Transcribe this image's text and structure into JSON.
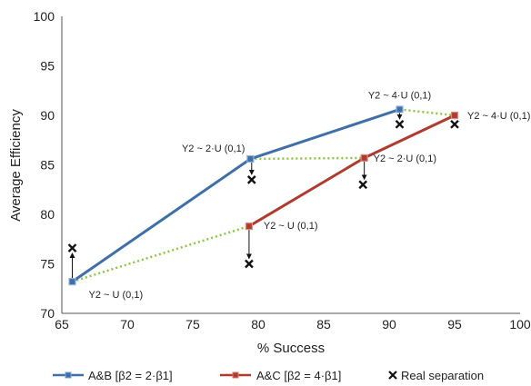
{
  "chart_data": {
    "type": "line",
    "xlabel": "% Success",
    "ylabel": "Average Efficiency",
    "xlim": [
      65,
      100
    ],
    "ylim": [
      70,
      100
    ],
    "xticks": [
      "65",
      "70",
      "75",
      "80",
      "85",
      "90",
      "95",
      "100"
    ],
    "yticks": [
      "70",
      "75",
      "80",
      "85",
      "90",
      "95",
      "100"
    ],
    "grid": false,
    "legend_position": "bottom",
    "series": [
      {
        "name": "A&B [β2 = 2·β1]",
        "color": "#3f6fa8",
        "points": [
          {
            "x": 65.8,
            "y": 73.2,
            "label": "Y2 ~ U (0,1)"
          },
          {
            "x": 79.4,
            "y": 85.6,
            "label": "Y2 ~ 2·U (0,1)"
          },
          {
            "x": 90.8,
            "y": 90.6,
            "label": "Y2 ~ 4·U (0,1)"
          }
        ]
      },
      {
        "name": "A&C [β2 = 4·β1]",
        "color": "#b03a2e",
        "points": [
          {
            "x": 79.3,
            "y": 78.8,
            "label": "Y2 ~ U (0,1)"
          },
          {
            "x": 88.1,
            "y": 85.7,
            "label": "Y2 ~ 2·U (0,1)"
          },
          {
            "x": 95.0,
            "y": 90.0,
            "label": "Y2 ~ 4·U (0,1)"
          }
        ]
      },
      {
        "name": "Real separation",
        "color": "#111111",
        "points": [
          {
            "x": 65.8,
            "y": 76.6
          },
          {
            "x": 79.5,
            "y": 83.5
          },
          {
            "x": 79.3,
            "y": 75.0
          },
          {
            "x": 88.0,
            "y": 83.0
          },
          {
            "x": 90.8,
            "y": 89.1
          },
          {
            "x": 95.0,
            "y": 89.1
          }
        ]
      }
    ],
    "connectors": [
      {
        "x1": 65.8,
        "y1": 73.2,
        "x2": 79.3,
        "y2": 78.8
      },
      {
        "x1": 79.4,
        "y1": 85.6,
        "x2": 88.1,
        "y2": 85.7
      },
      {
        "x1": 90.8,
        "y1": 90.6,
        "x2": 95.0,
        "y2": 90.0
      }
    ],
    "connector_color": "#8cc63f",
    "arrows": [
      {
        "x": 65.8,
        "y_from": 73.2,
        "y_to": 76.6
      },
      {
        "x": 79.5,
        "y_from": 85.6,
        "y_to": 83.5
      },
      {
        "x": 79.3,
        "y_from": 78.8,
        "y_to": 75.0
      },
      {
        "x": 88.1,
        "y_from": 85.7,
        "y_to": 83.0
      },
      {
        "x": 90.8,
        "y_from": 90.6,
        "y_to": 89.1
      },
      {
        "x": 95.0,
        "y_from": 90.0,
        "y_to": 89.1
      }
    ]
  }
}
